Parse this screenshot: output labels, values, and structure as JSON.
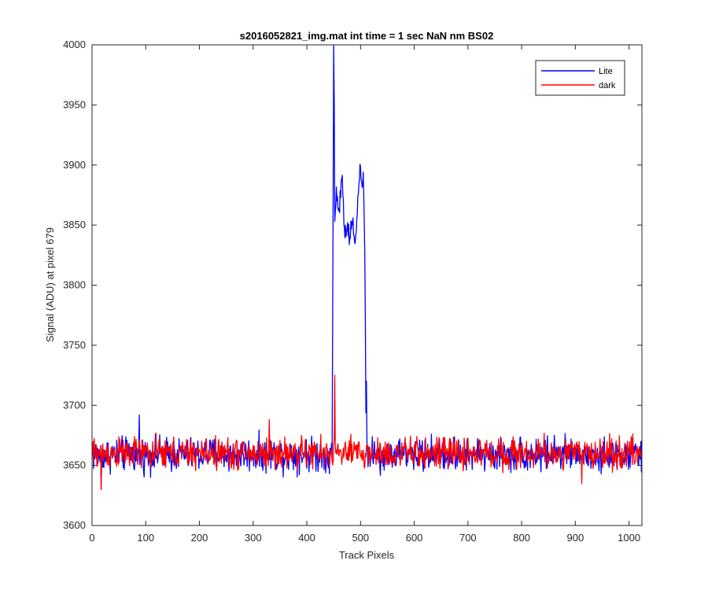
{
  "chart_data": {
    "type": "line",
    "title": "s2016052821_img.mat int time = 1 sec  NaN nm BS02",
    "xlabel": "Track Pixels",
    "ylabel": "Signal (ADU) at pixel 679",
    "xlim": [
      0,
      1024
    ],
    "ylim": [
      3600,
      4000
    ],
    "xticks": [
      0,
      100,
      200,
      300,
      400,
      500,
      600,
      700,
      800,
      900,
      1000
    ],
    "yticks": [
      3600,
      3650,
      3700,
      3750,
      3800,
      3850,
      3900,
      3950,
      4000
    ],
    "grid": false,
    "legend_position": "top-right",
    "series": [
      {
        "name": "Lite",
        "color": "#0000ff",
        "baseline": 3659,
        "noise_amplitude": 14,
        "features": [
          {
            "x": [
              0,
              10,
              17,
              30,
              50,
              85,
              88,
              120,
              200,
              400,
              445
            ],
            "y": [
              3655,
              3665,
              3630,
              3660,
              3658,
              3692,
              3655,
              3660,
              3658,
              3660,
              3660
            ]
          },
          {
            "x": [
              445,
              448,
              450,
              451,
              452,
              453,
              455,
              460,
              465,
              470,
              475,
              480,
              485,
              490,
              495,
              500,
              503,
              505,
              508,
              510,
              512,
              515
            ],
            "y": [
              3660,
              3760,
              4000,
              3950,
              3855,
              3870,
              3880,
              3860,
              3895,
              3845,
              3850,
              3840,
              3855,
              3840,
              3870,
              3902,
              3880,
              3895,
              3820,
              3700,
              3660,
              3660
            ]
          }
        ]
      },
      {
        "name": "dark",
        "color": "#ff0000",
        "baseline": 3660,
        "noise_amplitude": 13,
        "features": [
          {
            "x": [
              0,
              15,
              17,
              20,
              330,
              450,
              452,
              455,
              910,
              912,
              1024
            ],
            "y": [
              3660,
              3665,
              3630,
              3660,
              3688,
              3660,
              3725,
              3660,
              3660,
              3635,
              3660
            ]
          }
        ]
      }
    ]
  }
}
